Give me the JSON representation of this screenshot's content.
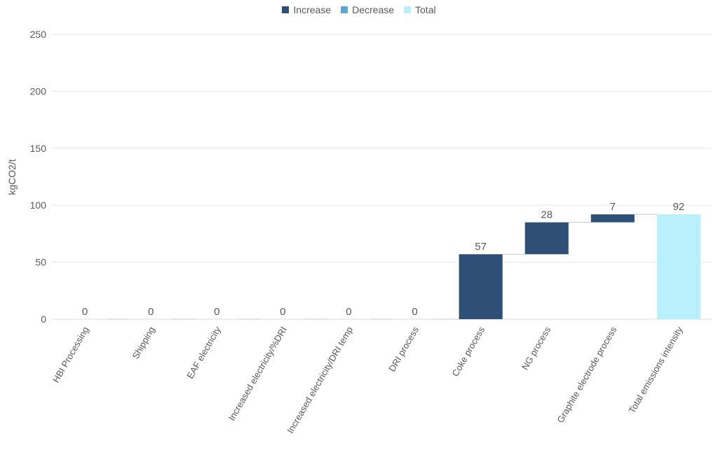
{
  "chart_data": {
    "type": "bar",
    "variant": "waterfall",
    "ylabel": "kgCO2/t",
    "ylim": [
      0,
      250
    ],
    "yticks": [
      0,
      50,
      100,
      150,
      200,
      250
    ],
    "grid": true,
    "legend_position": "top-center",
    "legend": [
      {
        "name": "Increase",
        "color": "#2e5077"
      },
      {
        "name": "Decrease",
        "color": "#5aa7cf"
      },
      {
        "name": "Total",
        "color": "#b9f0fb"
      }
    ],
    "categories": [
      "HBI Processing",
      "Shipping",
      "EAF electricity",
      "Increased electricity/%DRI",
      "Increased electricity/DRI temp",
      "DRI process",
      "Coke process",
      "NG process",
      "Graphite electrode process",
      "Total emissions intensity"
    ],
    "values": [
      0,
      0,
      0,
      0,
      0,
      0,
      57,
      28,
      7,
      92
    ],
    "kinds": [
      "increase",
      "increase",
      "increase",
      "increase",
      "increase",
      "increase",
      "increase",
      "increase",
      "increase",
      "total"
    ]
  }
}
